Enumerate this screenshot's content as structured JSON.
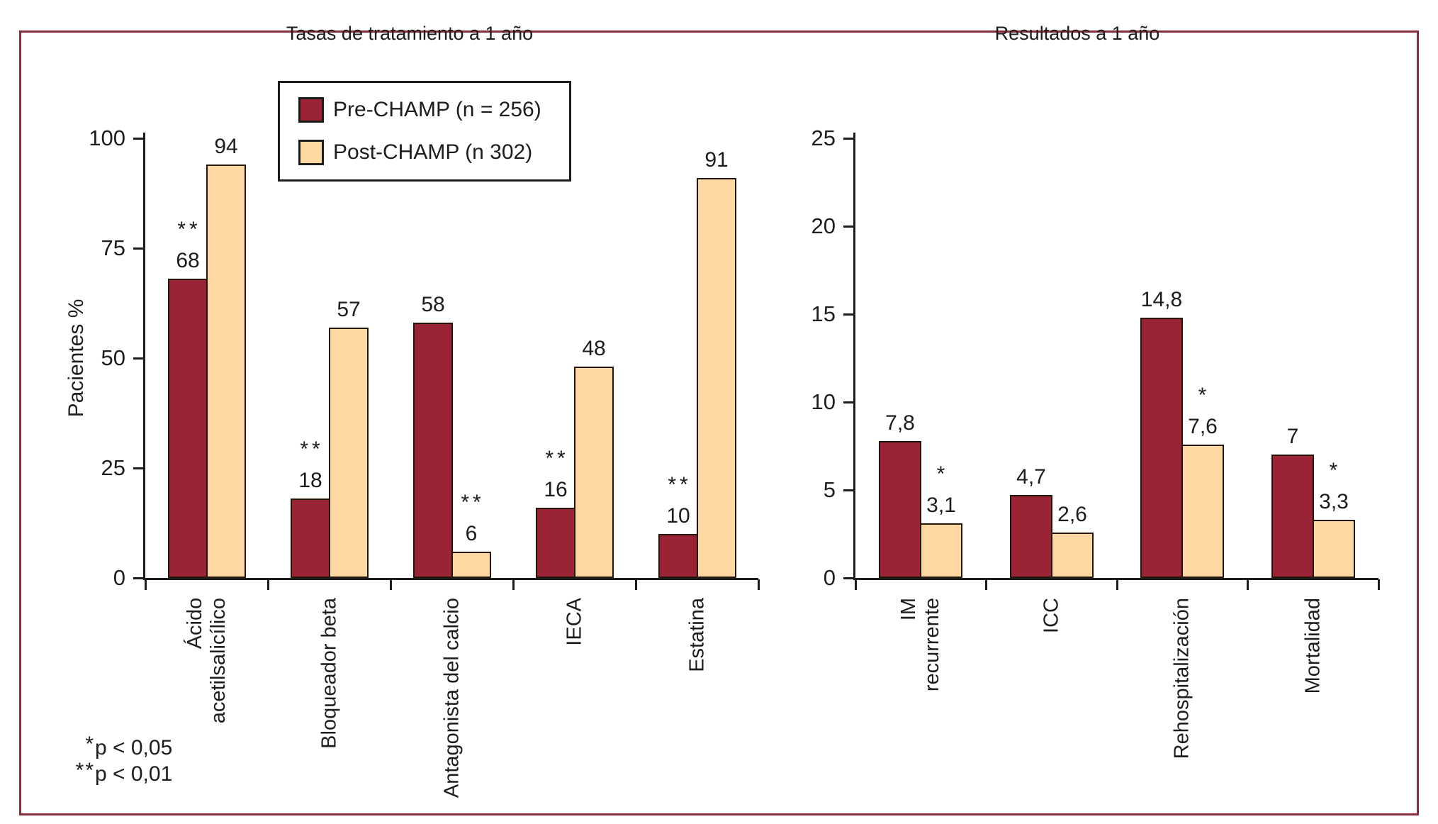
{
  "colors": {
    "pre": "#9A2335",
    "post": "#FDD8A3",
    "bar_border": "#221709",
    "frame_border": "#8B2B3E",
    "text": "#1D1D1B"
  },
  "legend": {
    "items": [
      {
        "label": "Pre-CHAMP (n = 256)",
        "color": "#9A2335"
      },
      {
        "label": "Post-CHAMP (n 302)",
        "color": "#FDD8A3"
      }
    ]
  },
  "footnotes": [
    {
      "stars": "*",
      "text": "p < 0,05"
    },
    {
      "stars": "**",
      "text": "p < 0,01"
    }
  ],
  "chart_data": [
    {
      "type": "bar",
      "title": "Tasas de tratamiento a 1 año",
      "xlabel": "",
      "ylabel": "Pacientes %",
      "ylim": [
        0,
        100
      ],
      "yticks": [
        100,
        75,
        50,
        25,
        0
      ],
      "grid": false,
      "legend_position": "upper-left",
      "categories": [
        "Ácido\nacetilsalicílico",
        "Bloqueador beta",
        "Antagonista del calcio",
        "IECA",
        "Estatina"
      ],
      "series": [
        {
          "name": "Pre-CHAMP (n = 256)",
          "values": [
            68,
            18,
            58,
            16,
            10
          ],
          "labels": [
            "68",
            "18",
            "58",
            "16",
            "10"
          ],
          "stars": [
            "**",
            "**",
            "",
            "**",
            "**"
          ]
        },
        {
          "name": "Post-CHAMP (n 302)",
          "values": [
            94,
            57,
            6,
            48,
            91
          ],
          "labels": [
            "94",
            "57",
            "6",
            "48",
            "91"
          ],
          "stars": [
            "",
            "",
            "**",
            "",
            ""
          ]
        }
      ]
    },
    {
      "type": "bar",
      "title": "Resultados a 1 año",
      "xlabel": "",
      "ylabel": "",
      "ylim": [
        0,
        25
      ],
      "yticks": [
        25,
        20,
        15,
        10,
        5,
        0
      ],
      "grid": false,
      "categories": [
        "IM\nrecurrente",
        "ICC",
        "Rehospitalización",
        "Mortalidad"
      ],
      "series": [
        {
          "name": "Pre-CHAMP (n = 256)",
          "values": [
            7.8,
            4.7,
            14.8,
            7
          ],
          "labels": [
            "7,8",
            "4,7",
            "14,8",
            "7"
          ],
          "stars": [
            "",
            "",
            "",
            ""
          ]
        },
        {
          "name": "Post-CHAMP (n 302)",
          "values": [
            3.1,
            2.6,
            7.6,
            3.3
          ],
          "labels": [
            "3,1",
            "2,6",
            "7,6",
            "3,3"
          ],
          "stars": [
            "*",
            "",
            "*",
            "*"
          ]
        }
      ]
    }
  ]
}
